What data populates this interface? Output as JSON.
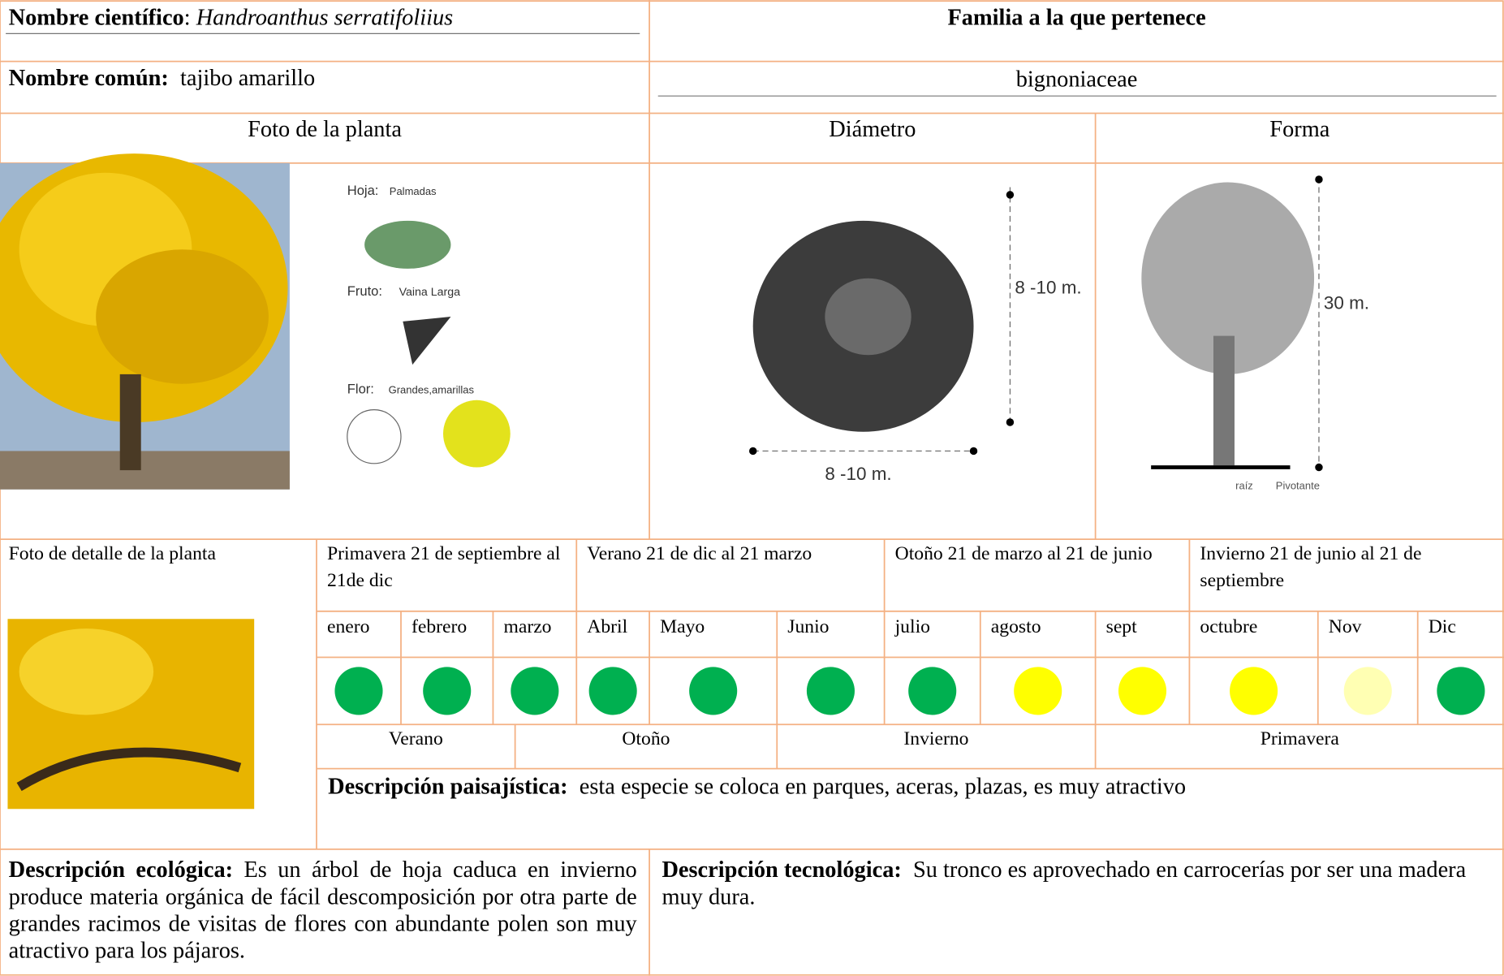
{
  "header": {
    "scientific_name_label": "Nombre científico",
    "scientific_name": "Handroanthus serratifoliius",
    "family_label": "Familia a la que pertenece",
    "common_name_label": "Nombre común:",
    "common_name": "tajibo amarillo",
    "family": "bignoniaceae"
  },
  "sections": {
    "photo": "Foto de la planta",
    "diameter": "Diámetro",
    "shape": "Forma",
    "detail_photo": "Foto de detalle de la planta"
  },
  "sketch": {
    "leaf": "Hoja:",
    "leaf_type": "Palmadas",
    "fruit": "Fruto:",
    "fruit_type": "Vaina Larga",
    "flower": "Flor:",
    "flower_type": "Grandes,amarillas"
  },
  "diameter_drawing": {
    "height": "8 -10 m.",
    "width": "8 -10 m."
  },
  "shape_drawing": {
    "height": "30 m.",
    "root_label": "raíz",
    "root_type": "Pivotante"
  },
  "seasons": [
    "Primavera 21 de septiembre al 21de dic",
    "Verano 21 de dic al 21 marzo",
    "Otoño 21 de marzo al 21 de junio",
    "Invierno 21 de junio al 21 de septiembre"
  ],
  "months": [
    {
      "name": "enero",
      "color": "#00b050"
    },
    {
      "name": "febrero",
      "color": "#00b050"
    },
    {
      "name": "marzo",
      "color": "#00b050"
    },
    {
      "name": "Abril",
      "color": "#00b050"
    },
    {
      "name": "Mayo",
      "color": "#00b050"
    },
    {
      "name": "Junio",
      "color": "#00b050"
    },
    {
      "name": "julio",
      "color": "#00b050"
    },
    {
      "name": "agosto",
      "color": "#ffff00"
    },
    {
      "name": "sept",
      "color": "#ffff00"
    },
    {
      "name": "octubre",
      "color": "#ffff00"
    },
    {
      "name": "Nov",
      "color": "#ffffb3"
    },
    {
      "name": "Dic",
      "color": "#00b050"
    }
  ],
  "season_labels": [
    "Verano",
    "Otoño",
    "Invierno",
    "Primavera"
  ],
  "landscape": {
    "label": "Descripción paisajística:",
    "text": "esta especie se coloca en parques, aceras, plazas, es muy atractivo"
  },
  "ecological": {
    "label": "Descripción ecológica:",
    "text": "Es un árbol de hoja caduca en invierno produce materia orgánica de fácil descomposición por otra parte de grandes racimos de visitas de flores con abundante polen son muy atractivo para los pájaros."
  },
  "technological": {
    "label": "Descripción tecnológica:",
    "text": "Su tronco es aprovechado en carrocerías por ser una madera muy dura."
  }
}
